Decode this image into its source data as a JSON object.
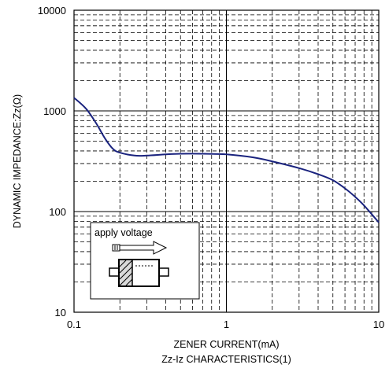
{
  "chart_data": {
    "type": "line",
    "title": "",
    "caption": "Zz-Iz CHARACTERISTICS(1)",
    "xlabel": "ZENER CURRENT(mA)",
    "ylabel": "DYNAMIC IMPEDANCE:Zz(Ω)",
    "x_scale": "log",
    "y_scale": "log",
    "xlim": [
      0.1,
      10
    ],
    "ylim": [
      10,
      10000
    ],
    "x_tick_labels": [
      "0.1",
      "1",
      "10"
    ],
    "y_tick_labels": [
      "10",
      "100",
      "1000",
      "10000"
    ],
    "grid": true,
    "legend": "none",
    "series": [
      {
        "color": "#1a237e",
        "x": [
          0.1,
          0.12,
          0.14,
          0.16,
          0.18,
          0.2,
          0.25,
          0.3,
          0.4,
          0.5,
          0.7,
          1.0,
          1.5,
          2.0,
          3.0,
          4.0,
          5.0,
          6.0,
          7.0,
          8.0,
          10.0
        ],
        "y": [
          1350,
          1050,
          750,
          530,
          420,
          385,
          360,
          360,
          370,
          375,
          375,
          370,
          345,
          315,
          270,
          235,
          205,
          170,
          140,
          115,
          78
        ]
      }
    ],
    "inset": {
      "label": "apply voltage",
      "icons": [
        "arrow-icon",
        "diode-package-icon"
      ]
    }
  }
}
